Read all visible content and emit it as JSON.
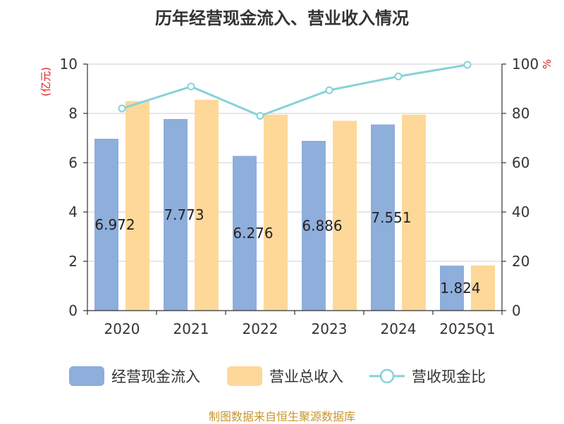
{
  "chart_data": {
    "type": "bar",
    "title": "历年经营现金流入、营业收入情况",
    "categories": [
      "2020",
      "2021",
      "2022",
      "2023",
      "2024",
      "2025Q1"
    ],
    "left_axis": {
      "unit": "(亿元)",
      "ylim": [
        0,
        10
      ],
      "ticks": [
        "0",
        "2",
        "4",
        "6",
        "8",
        "10"
      ]
    },
    "right_axis": {
      "unit": "%",
      "ylim": [
        0,
        100
      ],
      "ticks": [
        "0",
        "20",
        "40",
        "60",
        "80",
        "100"
      ]
    },
    "series": [
      {
        "name": "经营现金流入",
        "type": "bar",
        "axis": "left",
        "color": "#8eaedb",
        "values": [
          6.972,
          7.773,
          6.276,
          6.886,
          7.551,
          1.824
        ],
        "labels": [
          "6.972",
          "7.773",
          "6.276",
          "6.886",
          "7.551",
          "1.824"
        ]
      },
      {
        "name": "营业总收入",
        "type": "bar",
        "axis": "left",
        "color": "#fdd899",
        "values": [
          8.5,
          8.55,
          7.95,
          7.7,
          7.95,
          1.83
        ]
      },
      {
        "name": "营收现金比",
        "type": "line",
        "axis": "right",
        "color": "#86d2d8",
        "values": [
          82,
          90.9,
          79,
          89.4,
          95,
          99.7
        ]
      }
    ],
    "grid": true,
    "legend_position": "bottom"
  },
  "source": "制图数据来自恒生聚源数据库"
}
